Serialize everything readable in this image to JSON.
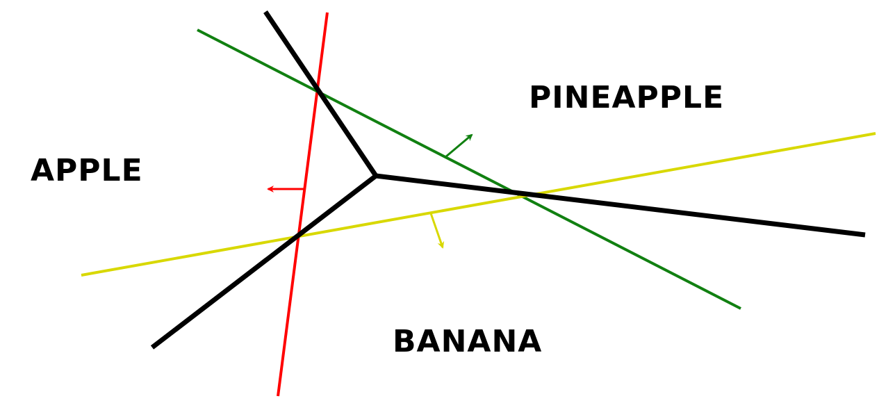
{
  "regions": {
    "apple": "APPLE",
    "pineapple": "PINEAPPLE",
    "banana": "BANANA"
  },
  "colors": {
    "boundary": "#000000",
    "apple_classifier": "#ff0000",
    "pineapple_classifier": "#118011",
    "banana_classifier": "#d8d800"
  }
}
